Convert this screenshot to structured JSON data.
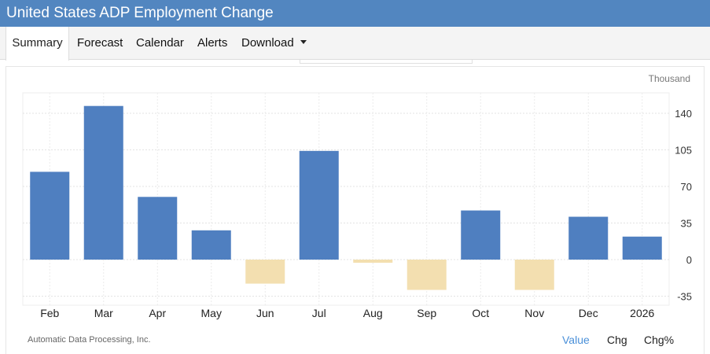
{
  "header": {
    "title": "United States ADP Employment Change"
  },
  "tabs": [
    {
      "label": "Summary",
      "active": true
    },
    {
      "label": "Forecast",
      "active": false
    },
    {
      "label": "Calendar",
      "active": false
    },
    {
      "label": "Alerts",
      "active": false
    },
    {
      "label": "Download",
      "active": false,
      "has_dropdown": true
    }
  ],
  "footer": {
    "source": "Automatic Data Processing, Inc.",
    "toggles": [
      {
        "label": "Value",
        "active": true
      },
      {
        "label": "Chg",
        "active": false
      },
      {
        "label": "Chg%",
        "active": false
      }
    ]
  },
  "colors": {
    "header_bg": "#5286c0",
    "positive": "#4f7fc0",
    "negative": "#f3dfb0",
    "active_toggle": "#4a90d9"
  },
  "chart_data": {
    "type": "bar",
    "unit_label": "Thousand",
    "categories": [
      "Feb",
      "Mar",
      "Apr",
      "May",
      "Jun",
      "Jul",
      "Aug",
      "Sep",
      "Oct",
      "Nov",
      "Dec",
      "2026"
    ],
    "values": [
      84,
      147,
      60,
      28,
      -23,
      104,
      -3,
      -29,
      47,
      -29,
      41,
      22
    ],
    "ylim": [
      -45,
      160
    ],
    "yticks": [
      -35,
      0,
      35,
      70,
      105,
      140
    ],
    "grid": true,
    "y_axis_position": "right"
  }
}
